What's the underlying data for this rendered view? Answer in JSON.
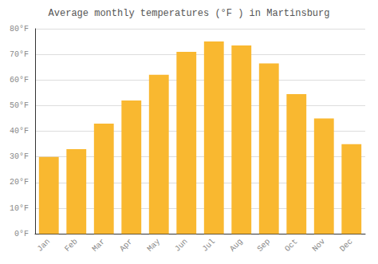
{
  "chart_data": {
    "type": "bar",
    "title": "Average monthly temperatures (°F ) in Martinsburg",
    "categories": [
      "Jan",
      "Feb",
      "Mar",
      "Apr",
      "May",
      "Jun",
      "Jul",
      "Aug",
      "Sep",
      "Oct",
      "Nov",
      "Dec"
    ],
    "values": [
      30,
      33,
      43,
      52,
      62,
      71,
      75,
      73.5,
      66.5,
      54.5,
      45,
      35
    ],
    "color": "#F9B830",
    "ylim": [
      0,
      80
    ],
    "yticks": [
      {
        "value": 0,
        "label": "0°F"
      },
      {
        "value": 10,
        "label": "10°F"
      },
      {
        "value": 20,
        "label": "20°F"
      },
      {
        "value": 30,
        "label": "30°F"
      },
      {
        "value": 40,
        "label": "40°F"
      },
      {
        "value": 50,
        "label": "50°F"
      },
      {
        "value": 60,
        "label": "60°F"
      },
      {
        "value": 70,
        "label": "70°F"
      },
      {
        "value": 80,
        "label": "80°F"
      }
    ],
    "grid": true
  }
}
